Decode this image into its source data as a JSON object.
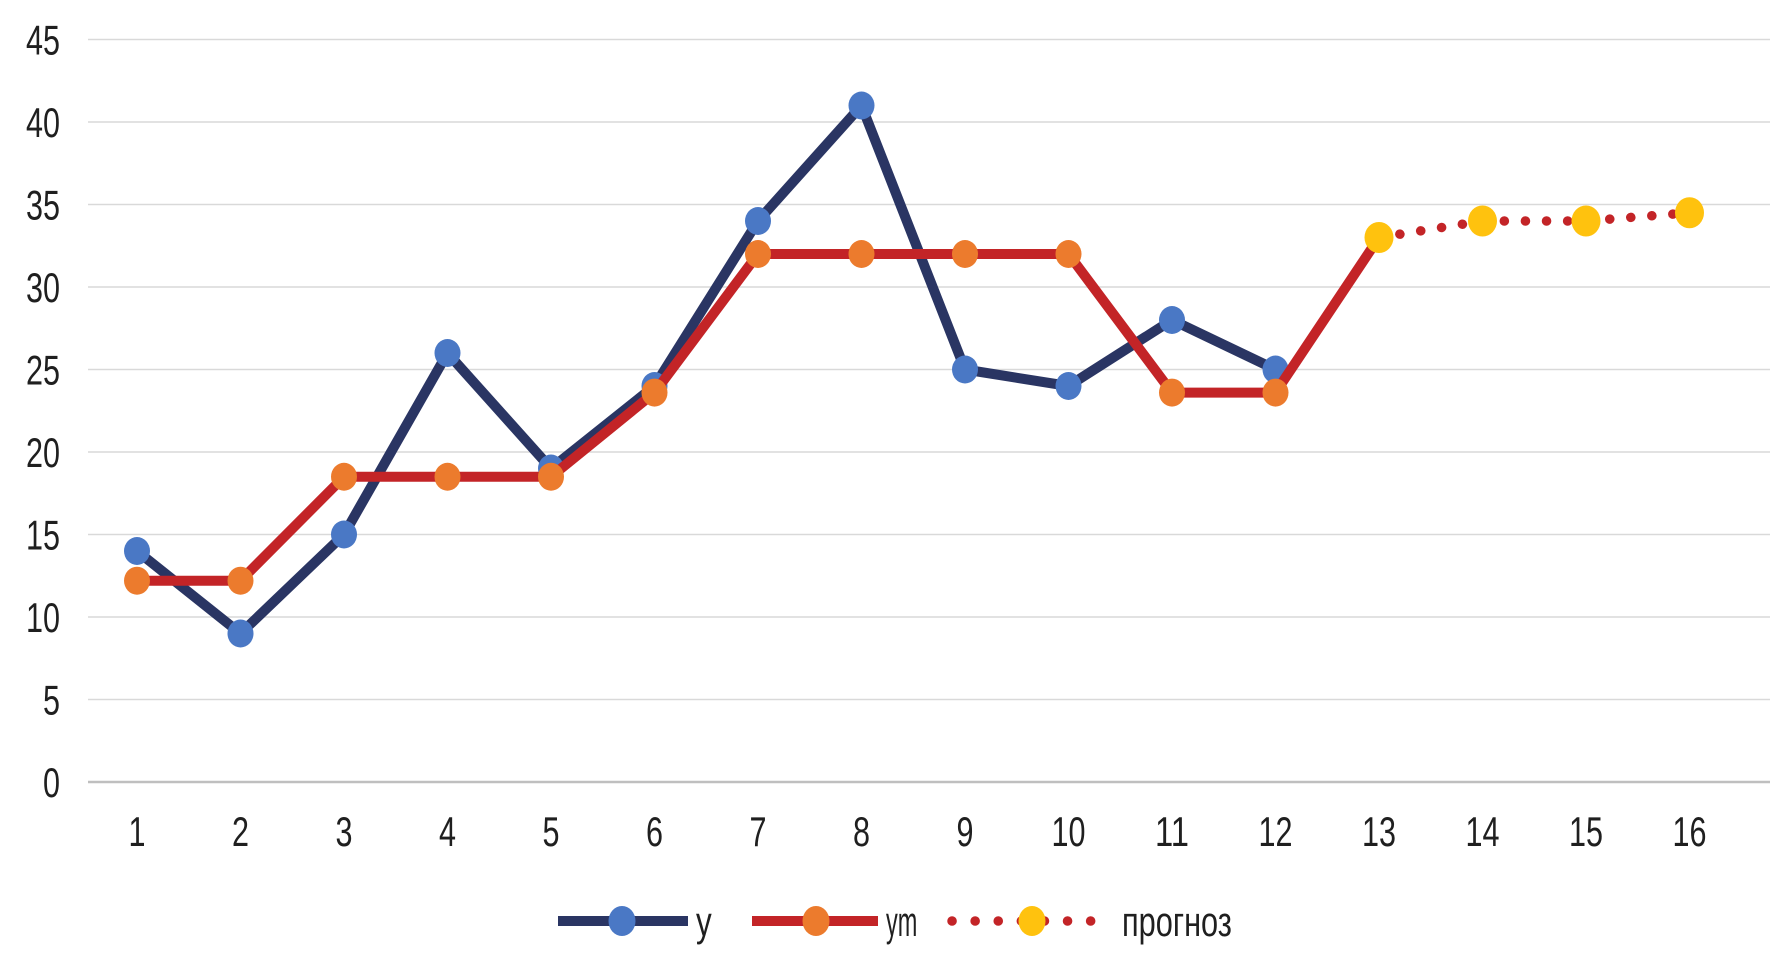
{
  "chart_data": {
    "type": "line",
    "title": "",
    "x_categories": [
      "1",
      "2",
      "3",
      "4",
      "5",
      "6",
      "7",
      "8",
      "9",
      "10",
      "11",
      "12",
      "13",
      "14",
      "15",
      "16"
    ],
    "y_axis": {
      "min": 0,
      "max": 45,
      "tick_step": 5,
      "ticks": [
        0,
        5,
        10,
        15,
        20,
        25,
        30,
        35,
        40,
        45
      ]
    },
    "grid": true,
    "gridline_color": "#d9d9d9",
    "zero_line_color": "#bfbfbf",
    "text_color": "#1f1f1f",
    "legend_position": "bottom-center",
    "series": [
      {
        "name": "y",
        "style": "solid",
        "line_color": "#2A3563",
        "marker_color": "#4A78C5",
        "x": [
          1,
          2,
          3,
          4,
          5,
          6,
          7,
          8,
          9,
          10,
          11,
          12
        ],
        "values": [
          14,
          9,
          15,
          26,
          19,
          24,
          34,
          41,
          25,
          24,
          28,
          25
        ]
      },
      {
        "name": "ym",
        "style": "solid",
        "line_color": "#C32427",
        "marker_color": "#EC7B2D",
        "x": [
          1,
          2,
          3,
          4,
          5,
          6,
          7,
          8,
          9,
          10,
          11,
          12,
          13
        ],
        "values": [
          12.2,
          12.2,
          18.5,
          18.5,
          18.5,
          23.6,
          32,
          32,
          32,
          32,
          23.6,
          23.6,
          33
        ]
      },
      {
        "name": "прогноз",
        "style": "dotted",
        "line_color": "#C32427",
        "marker_color": "#FFC20E",
        "x": [
          13,
          14,
          15,
          16
        ],
        "values": [
          33,
          34,
          34,
          34.5
        ]
      }
    ]
  }
}
